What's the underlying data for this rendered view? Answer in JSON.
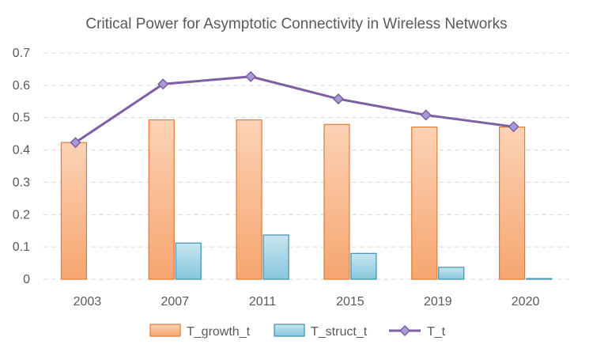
{
  "chart_data": {
    "type": "bar",
    "title": "Critical Power for Asymptotic Connectivity in Wireless Networks",
    "xlabel": "",
    "ylabel": "",
    "categories": [
      "2003",
      "2007",
      "2011",
      "2015",
      "2019",
      "2020"
    ],
    "ylim": [
      0,
      0.7
    ],
    "yticks": [
      "0",
      "0.1",
      "0.2",
      "0.3",
      "0.4",
      "0.5",
      "0.6",
      "0.7"
    ],
    "grid": true,
    "legend_position": "bottom",
    "series": [
      {
        "name": "T_growth_t",
        "kind": "bar",
        "values": [
          0.423,
          0.493,
          0.493,
          0.479,
          0.471,
          0.471
        ],
        "color": "#F4A46F"
      },
      {
        "name": "T_struct_t",
        "kind": "bar",
        "values": [
          0.0,
          0.112,
          0.137,
          0.08,
          0.037,
          0.002
        ],
        "color": "#6FB7CF"
      },
      {
        "name": "T_t",
        "kind": "line",
        "values": [
          0.423,
          0.604,
          0.627,
          0.558,
          0.508,
          0.472
        ],
        "color": "#7E5FA3"
      }
    ]
  }
}
